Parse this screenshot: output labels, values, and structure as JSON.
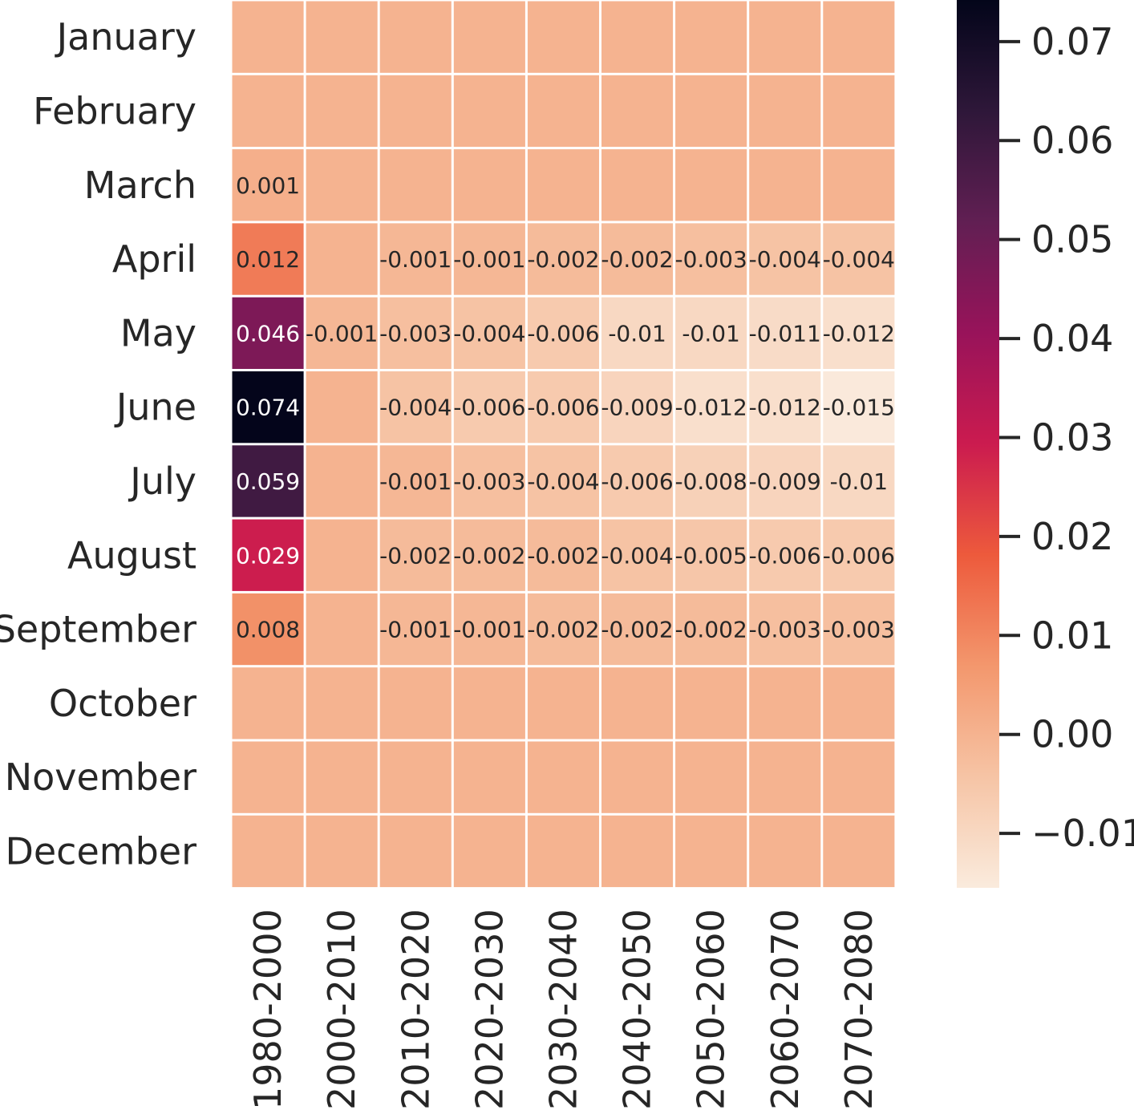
{
  "chart_data": {
    "type": "heatmap",
    "title": "",
    "xlabel": "",
    "ylabel": "",
    "rows": [
      "January",
      "February",
      "March",
      "April",
      "May",
      "June",
      "July",
      "August",
      "September",
      "October",
      "November",
      "December"
    ],
    "columns": [
      "1980-2000",
      "2000-2010",
      "2010-2020",
      "2020-2030",
      "2030-2040",
      "2040-2050",
      "2050-2060",
      "2060-2070",
      "2070-2080"
    ],
    "values": [
      [
        null,
        null,
        null,
        null,
        null,
        null,
        null,
        null,
        null
      ],
      [
        null,
        null,
        null,
        null,
        null,
        null,
        null,
        null,
        null
      ],
      [
        0.001,
        null,
        null,
        null,
        null,
        null,
        null,
        null,
        null
      ],
      [
        0.012,
        null,
        -0.001,
        -0.001,
        -0.002,
        -0.002,
        -0.003,
        -0.004,
        -0.004
      ],
      [
        0.046,
        -0.001,
        -0.003,
        -0.004,
        -0.006,
        -0.01,
        -0.01,
        -0.011,
        -0.012
      ],
      [
        0.074,
        null,
        -0.004,
        -0.006,
        -0.006,
        -0.009,
        -0.012,
        -0.012,
        -0.015
      ],
      [
        0.059,
        null,
        -0.001,
        -0.003,
        -0.004,
        -0.006,
        -0.008,
        -0.009,
        -0.01
      ],
      [
        0.029,
        null,
        -0.002,
        -0.002,
        -0.002,
        -0.004,
        -0.005,
        -0.006,
        -0.006
      ],
      [
        0.008,
        null,
        -0.001,
        -0.001,
        -0.002,
        -0.002,
        -0.002,
        -0.003,
        -0.003
      ],
      [
        null,
        null,
        null,
        null,
        null,
        null,
        null,
        null,
        null
      ],
      [
        null,
        null,
        null,
        null,
        null,
        null,
        null,
        null,
        null
      ],
      [
        null,
        null,
        null,
        null,
        null,
        null,
        null,
        null,
        null
      ]
    ],
    "cell_labels": [
      [
        "",
        "",
        "",
        "",
        "",
        "",
        "",
        "",
        ""
      ],
      [
        "",
        "",
        "",
        "",
        "",
        "",
        "",
        "",
        ""
      ],
      [
        "0.001",
        "",
        "",
        "",
        "",
        "",
        "",
        "",
        ""
      ],
      [
        "0.012",
        "",
        "-0.001",
        "-0.001",
        "-0.002",
        "-0.002",
        "-0.003",
        "-0.004",
        "-0.004"
      ],
      [
        "0.046",
        "-0.001",
        "-0.003",
        "-0.004",
        "-0.006",
        "-0.01",
        "-0.01",
        "-0.011",
        "-0.012"
      ],
      [
        "0.074",
        "",
        "-0.004",
        "-0.006",
        "-0.006",
        "-0.009",
        "-0.012",
        "-0.012",
        "-0.015"
      ],
      [
        "0.059",
        "",
        "-0.001",
        "-0.003",
        "-0.004",
        "-0.006",
        "-0.008",
        "-0.009",
        "-0.01"
      ],
      [
        "0.029",
        "",
        "-0.002",
        "-0.002",
        "-0.002",
        "-0.004",
        "-0.005",
        "-0.006",
        "-0.006"
      ],
      [
        "0.008",
        "",
        "-0.001",
        "-0.001",
        "-0.002",
        "-0.002",
        "-0.002",
        "-0.003",
        "-0.003"
      ],
      [
        "",
        "",
        "",
        "",
        "",
        "",
        "",
        "",
        ""
      ],
      [
        "",
        "",
        "",
        "",
        "",
        "",
        "",
        "",
        ""
      ],
      [
        "",
        "",
        "",
        "",
        "",
        "",
        "",
        "",
        ""
      ]
    ],
    "colorbar": {
      "range": [
        -0.0155,
        0.0742
      ],
      "ticks": [
        0.07,
        0.06,
        0.05,
        0.04,
        0.03,
        0.02,
        0.01,
        0.0,
        -0.01
      ],
      "tick_labels": [
        "0.07",
        "0.06",
        "0.05",
        "0.04",
        "0.03",
        "0.02",
        "0.01",
        "0.00",
        "−0.01"
      ],
      "colormap": "rocket_r"
    },
    "grid": true,
    "legend": "colorbar-right"
  }
}
